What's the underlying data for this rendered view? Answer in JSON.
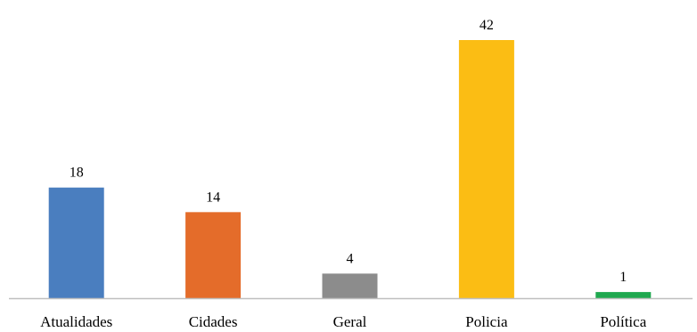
{
  "chart_data": {
    "type": "bar",
    "categories": [
      "Atualidades",
      "Cidades",
      "Geral",
      "Policia",
      "Política"
    ],
    "values": [
      18,
      14,
      4,
      42,
      1
    ],
    "colors": [
      "#4a7ebf",
      "#e46c2a",
      "#8c8c8c",
      "#fbbd14",
      "#1fa84f"
    ],
    "title": "",
    "xlabel": "",
    "ylabel": "",
    "ylim": [
      0,
      42
    ],
    "grid": false,
    "legend": "none",
    "data_labels": true
  }
}
